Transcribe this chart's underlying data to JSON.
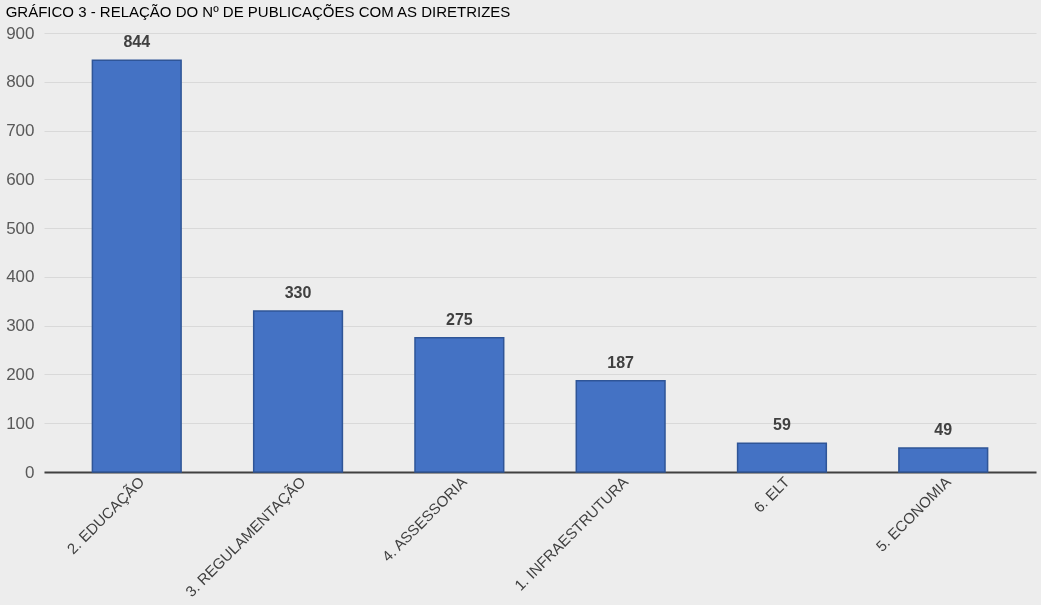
{
  "chart_data": {
    "type": "bar",
    "title": "GRÁFICO 3 - RELAÇÃO DO Nº DE PUBLICAÇÕES COM AS DIRETRIZES",
    "categories": [
      "2. EDUCAÇÃO",
      "3. REGULAMENTAÇÃO",
      "4. ASSESSORIA",
      "1. INFRAESTRUTURA",
      "6. ELT",
      "5. ECONOMIA"
    ],
    "values": [
      844,
      330,
      275,
      187,
      59,
      49
    ],
    "color": "#4472c4",
    "ylim": [
      0,
      900
    ],
    "yticks": [
      0,
      100,
      200,
      300,
      400,
      500,
      600,
      700,
      800,
      900
    ],
    "grid": "y",
    "data_labels": true
  }
}
